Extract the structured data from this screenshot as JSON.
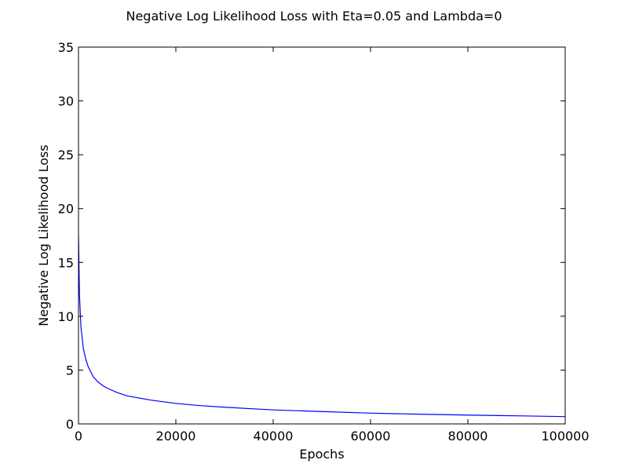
{
  "chart_data": {
    "type": "line",
    "title": "Negative Log Likelihood Loss with Eta=0.05 and Lambda=0",
    "xlabel": "Epochs",
    "ylabel": "Negative Log Likelihood Loss",
    "xlim": [
      0,
      100000
    ],
    "ylim": [
      0,
      35
    ],
    "x_ticks": [
      0,
      20000,
      40000,
      60000,
      80000,
      100000
    ],
    "y_ticks": [
      0,
      5,
      10,
      15,
      20,
      25,
      30,
      35
    ],
    "x_tick_labels": [
      "0",
      "20000",
      "40000",
      "60000",
      "80000",
      "100000"
    ],
    "y_tick_labels": [
      "0",
      "5",
      "10",
      "15",
      "20",
      "25",
      "30",
      "35"
    ],
    "grid": false,
    "legend": "none",
    "series": [
      {
        "color": "#0000ff",
        "x": [
          0,
          200,
          500,
          1000,
          1500,
          2000,
          3000,
          4000,
          5000,
          6000,
          8000,
          10000,
          15000,
          20000,
          25000,
          30000,
          40000,
          50000,
          60000,
          70000,
          80000,
          90000,
          100000
        ],
        "y": [
          17.5,
          12.0,
          9.0,
          7.0,
          6.0,
          5.3,
          4.4,
          3.9,
          3.55,
          3.3,
          2.9,
          2.6,
          2.2,
          1.9,
          1.7,
          1.55,
          1.3,
          1.15,
          1.0,
          0.9,
          0.82,
          0.75,
          0.68
        ]
      }
    ]
  }
}
